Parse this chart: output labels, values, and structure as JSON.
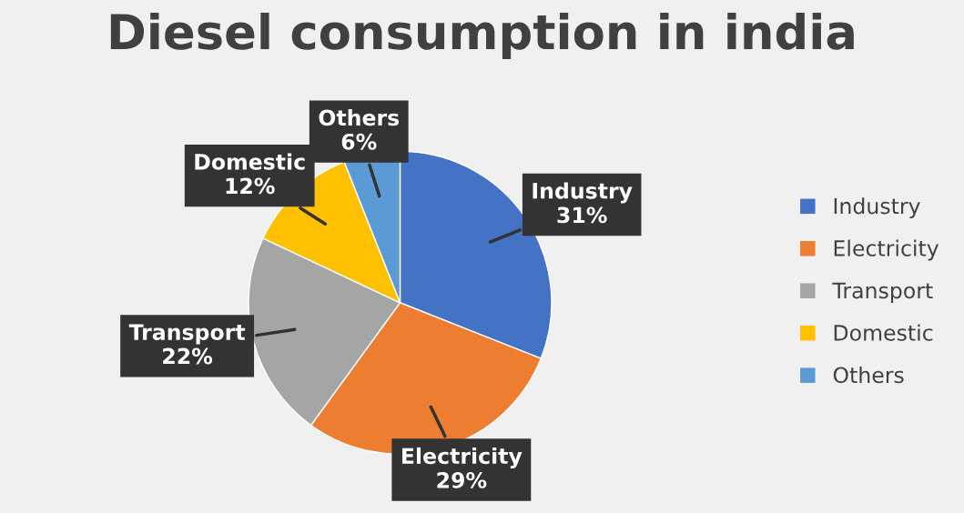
{
  "chart_data": {
    "type": "pie",
    "title": "Diesel consumption in india",
    "categories": [
      "Industry",
      "Electricity",
      "Transport",
      "Domestic",
      "Others"
    ],
    "values": [
      31,
      29,
      22,
      12,
      6
    ],
    "value_labels": [
      "31%",
      "29%",
      "22%",
      "12%",
      "6%"
    ],
    "colors": [
      "#4472c4",
      "#ed7d31",
      "#a5a5a5",
      "#ffc000",
      "#5b9bd5"
    ],
    "legend": "right"
  }
}
